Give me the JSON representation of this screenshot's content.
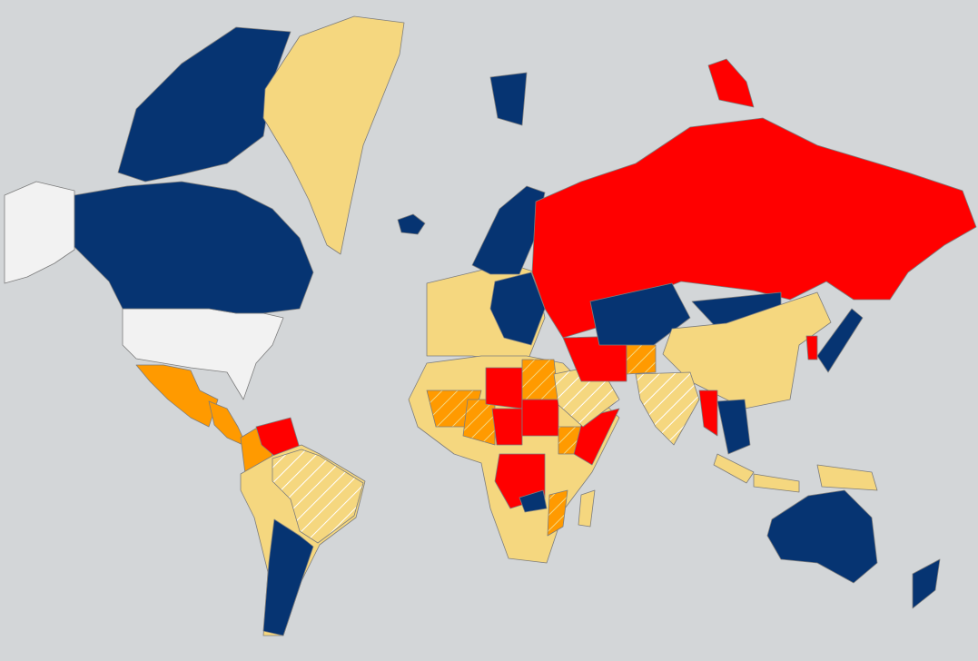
{
  "map": {
    "colors": {
      "background": "#d3d6d8",
      "navy": "#063472",
      "red": "#ff0000",
      "orange": "#ff9a00",
      "yellow": "#f5d77f",
      "white": "#f2f2f2",
      "border": "#7d7d7d",
      "hatch": "#ffffff"
    },
    "regions": {
      "alaska": "white",
      "usa": "white",
      "canada-mainland": "navy",
      "canada-arctic": "navy",
      "greenland": "yellow",
      "iceland": "navy",
      "svalbard": "navy",
      "mexico": "orange",
      "central-america": "orange",
      "colombia": "orange",
      "venezuela": "red",
      "south-america": "yellow",
      "brazil": "yellow-hatched",
      "argentina": "navy",
      "europe": "yellow",
      "scandinavia": "navy",
      "eastern-europe": "navy",
      "russia": "red",
      "arctic-islands": "red",
      "africa": "yellow",
      "libya": "red",
      "sudan": "red",
      "chad": "red",
      "somalia": "red",
      "drc": "red",
      "mali": "orange-hatched",
      "niger": "orange-hatched",
      "egypt": "orange-hatched",
      "ethiopia": "orange-hatched",
      "mozambique": "orange-hatched",
      "zambia": "navy",
      "madagascar": "yellow",
      "iran": "red",
      "afghanistan": "orange-hatched",
      "arabia": "yellow-hatched",
      "kazakhstan": "navy",
      "mongolia": "navy",
      "china": "yellow",
      "india": "yellow-hatched",
      "myanmar": "red",
      "indochina": "navy",
      "korea": "red",
      "japan": "navy",
      "sumatra": "yellow",
      "java": "yellow",
      "new-guinea": "yellow",
      "australia": "navy",
      "new-zealand": "navy"
    }
  }
}
